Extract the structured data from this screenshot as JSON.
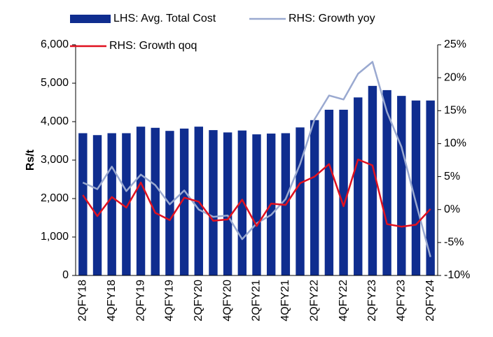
{
  "chart_data": {
    "type": "bar",
    "y_label": "Rs/t",
    "categories": [
      "2QFY18",
      null,
      "4QFY18",
      null,
      "2QFY19",
      null,
      "4QFY19",
      null,
      "2QFY20",
      null,
      "4QFY20",
      null,
      "2QFY21",
      null,
      "4QFY21",
      null,
      "2QFY22",
      null,
      "4QFY22",
      null,
      "2QFY23",
      null,
      "4QFY23",
      null,
      "2QFY24"
    ],
    "series": [
      {
        "name": "LHS: Avg. Total Cost",
        "type": "bar",
        "color": "#0f2d8f",
        "values": [
          3700,
          3650,
          3700,
          3700,
          3870,
          3840,
          3760,
          3820,
          3870,
          3780,
          3720,
          3770,
          3670,
          3690,
          3700,
          3850,
          4040,
          4310,
          4310,
          4630,
          4930,
          4820,
          4670,
          4550,
          4550
        ]
      },
      {
        "name": "RHS: Growth yoy",
        "type": "line",
        "axis": "y2",
        "color": "#9aa9d0",
        "values": [
          4.1,
          3.1,
          6.5,
          2.8,
          5.3,
          3.7,
          0.8,
          2.9,
          0,
          -1.1,
          -0.9,
          -4.5,
          -2.1,
          -0.8,
          1.6,
          6.9,
          13.7,
          17.3,
          16.7,
          20.6,
          22.4,
          14.8,
          9.5,
          1.0,
          -7.2
        ]
      },
      {
        "name": "RHS: Growth qoq",
        "type": "line",
        "axis": "y2",
        "color": "#e0101f",
        "values": [
          2.2,
          -1.0,
          1.9,
          0.3,
          4.1,
          -0.5,
          -1.6,
          1.8,
          1.2,
          -1.7,
          -1.5,
          1.5,
          -2.5,
          0.9,
          0.7,
          4.0,
          5.0,
          6.9,
          0.5,
          7.6,
          6.7,
          -2.2,
          -2.6,
          -2.3,
          0.1
        ]
      }
    ],
    "ylim": [
      0,
      6000
    ],
    "yticks": [
      0,
      {
        "value": 1000,
        "label": "1,000"
      },
      {
        "value": 2000,
        "label": "2,000"
      },
      {
        "value": 3000,
        "label": "3,000"
      },
      {
        "value": 4000,
        "label": "4,000"
      },
      {
        "value": 5000,
        "label": "5,000"
      },
      {
        "value": 6000,
        "label": "6,000"
      }
    ],
    "y2lim": [
      -10,
      25
    ],
    "y2ticks": [
      {
        "value": -10,
        "label": "-10%"
      },
      {
        "value": -5,
        "label": "-5%"
      },
      {
        "value": 0,
        "label": "0%"
      },
      {
        "value": 5,
        "label": "5%"
      },
      {
        "value": 10,
        "label": "10%"
      },
      {
        "value": 15,
        "label": "15%"
      },
      {
        "value": 20,
        "label": "20%"
      },
      {
        "value": 25,
        "label": "25%"
      }
    ],
    "grid": false
  }
}
